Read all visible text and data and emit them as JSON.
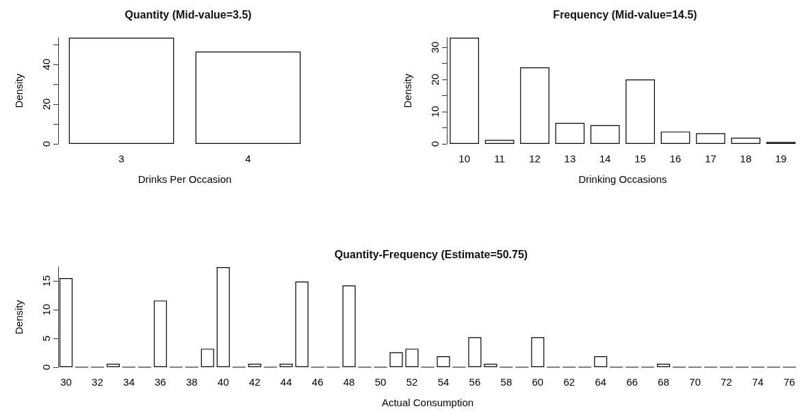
{
  "chart_data": [
    {
      "type": "bar",
      "title": "Quantity (Mid-value=3.5)",
      "xlabel": "Drinks Per Occasion",
      "ylabel": "Density",
      "categories": [
        "3",
        "4"
      ],
      "values": [
        53.5,
        46.5
      ],
      "color": "#ffffff",
      "ylim": [
        0,
        53.5
      ],
      "yticks": [
        0,
        {
          "value": 10,
          "label": null
        },
        20,
        {
          "value": 30,
          "label": null
        },
        40,
        {
          "value": 50,
          "label": null
        }
      ]
    },
    {
      "type": "bar",
      "title": "Frequency (Mid-value=14.5)",
      "xlabel": "Drinking Occasions",
      "ylabel": "Density",
      "categories": [
        "10",
        "11",
        "12",
        "13",
        "14",
        "15",
        "16",
        "17",
        "18",
        "19"
      ],
      "values": [
        33,
        1.2,
        23.8,
        6.5,
        5.8,
        20,
        3.8,
        3.3,
        1.9,
        0.6
      ],
      "color": "#ffffff",
      "ylim": [
        0,
        33
      ],
      "yticks": [
        0,
        {
          "value": 5,
          "label": null
        },
        10,
        {
          "value": 15,
          "label": null
        },
        20,
        {
          "value": 25,
          "label": null
        },
        30
      ]
    },
    {
      "type": "bar",
      "title": "Quantity-Frequency (Estimate=50.75)",
      "xlabel": "Actual Consumption",
      "ylabel": "Density",
      "categories": [
        "30",
        null,
        "32",
        null,
        "34",
        null,
        "36",
        null,
        "38",
        null,
        "40",
        null,
        "42",
        null,
        "44",
        null,
        "46",
        null,
        "48",
        null,
        "50",
        null,
        "52",
        null,
        "54",
        null,
        "56",
        null,
        "58",
        null,
        "60",
        null,
        "62",
        null,
        "64",
        null,
        "66",
        null,
        "68",
        null,
        "70",
        null,
        "72",
        null,
        "74",
        null,
        "76"
      ],
      "values": [
        15.5,
        0,
        0,
        0.6,
        0,
        0,
        11.6,
        0,
        0,
        3.2,
        17.4,
        0,
        0.6,
        0,
        0.6,
        14.9,
        0,
        0,
        14.2,
        0,
        0,
        2.6,
        3.2,
        0,
        1.9,
        0,
        5.2,
        0.6,
        0,
        0,
        5.2,
        0,
        0,
        0,
        1.9,
        0,
        0,
        0,
        0.6,
        0,
        0,
        0,
        0,
        0,
        0,
        0,
        0
      ],
      "colors": [
        "#ffffff",
        "#000000",
        "#000000",
        "#ffffff",
        "#000000",
        "#000000",
        "#ffffff",
        "#000000",
        "#000000",
        "#ffffff",
        "#ffffff",
        "#000000",
        "#ffffff",
        "#000000",
        "#ffffff",
        "#ffffff",
        "#000000",
        "#000000",
        "#ffffff",
        "#000000",
        "#000000",
        "#ffffff",
        "#ffffff",
        "#000000",
        "#ffffff",
        "#000000",
        "#ffffff",
        "#ffffff",
        "#000000",
        "#000000",
        "#ffffff",
        "#000000",
        "#000000",
        "#000000",
        "#ffffff",
        "#000000",
        "#000000",
        "#000000",
        "#ffffff",
        "#000000",
        "#000000",
        "#000000",
        "#000000",
        "#000000",
        "#000000",
        "#000000",
        "#000000"
      ],
      "ylim": [
        0,
        17.4
      ],
      "yticks": [
        0,
        5,
        10,
        15
      ]
    }
  ]
}
